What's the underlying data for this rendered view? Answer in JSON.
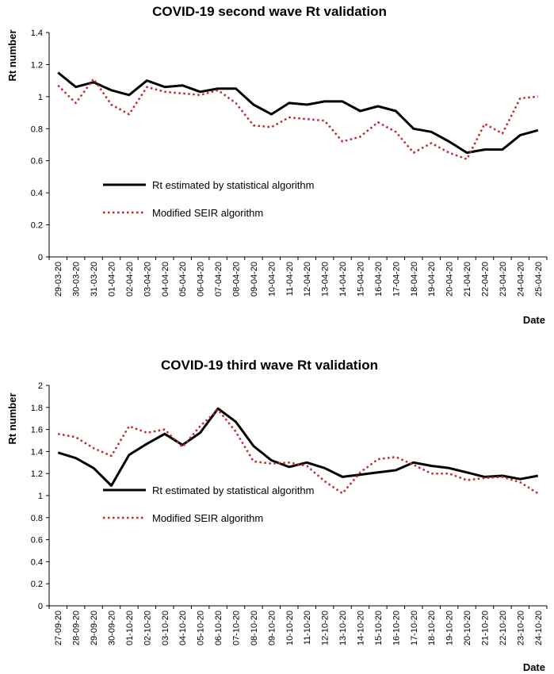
{
  "chart_data": [
    {
      "type": "line",
      "title": "COVID-19 second wave Rt validation",
      "xlabel": "Date",
      "ylabel": "Rt number",
      "ylim": [
        0,
        1.4
      ],
      "yticks": [
        "0",
        "0.2",
        "0.4",
        "0.6",
        "0.8",
        "1",
        "1.2",
        "1.4"
      ],
      "grid": false,
      "legend_position": "left",
      "categories": [
        "29-03-20",
        "30-03-20",
        "31-03-20",
        "01-04-20",
        "02-04-20",
        "03-04-20",
        "04-04-20",
        "05-04-20",
        "06-04-20",
        "07-04-20",
        "08-04-20",
        "09-04-20",
        "10-04-20",
        "11-04-20",
        "12-04-20",
        "13-04-20",
        "14-04-20",
        "15-04-20",
        "16-04-20",
        "17-04-20",
        "18-04-20",
        "19-04-20",
        "20-04-20",
        "21-04-20",
        "22-04-20",
        "23-04-20",
        "24-04-20",
        "25-04-20"
      ],
      "series": [
        {
          "name": "Rt estimated by statistical algorithm",
          "color": "#000000",
          "style": "solid",
          "values": [
            1.15,
            1.06,
            1.09,
            1.04,
            1.01,
            1.1,
            1.06,
            1.07,
            1.03,
            1.05,
            1.05,
            0.95,
            0.89,
            0.96,
            0.95,
            0.97,
            0.97,
            0.91,
            0.94,
            0.91,
            0.8,
            0.78,
            0.72,
            0.65,
            0.67,
            0.67,
            0.76,
            0.79
          ]
        },
        {
          "name": "Modified SEIR algorithm",
          "color": "#c0272d",
          "style": "dotted",
          "values": [
            1.07,
            0.96,
            1.11,
            0.95,
            0.89,
            1.06,
            1.03,
            1.02,
            1.01,
            1.04,
            0.96,
            0.82,
            0.81,
            0.87,
            0.86,
            0.85,
            0.72,
            0.75,
            0.84,
            0.78,
            0.65,
            0.71,
            0.65,
            0.61,
            0.83,
            0.77,
            0.99,
            1.0
          ]
        }
      ]
    },
    {
      "type": "line",
      "title": "COVID-19 third wave Rt validation",
      "xlabel": "Date",
      "ylabel": "Rt number",
      "ylim": [
        0,
        2
      ],
      "yticks": [
        "0",
        "0.2",
        "0.4",
        "0.6",
        "0.8",
        "1",
        "1.2",
        "1.4",
        "1.6",
        "1.8",
        "2"
      ],
      "grid": false,
      "legend_position": "left",
      "categories": [
        "27-09-20",
        "28-09-20",
        "29-09-20",
        "30-09-20",
        "01-10-20",
        "02-10-20",
        "03-10-20",
        "04-10-20",
        "05-10-20",
        "06-10-20",
        "07-10-20",
        "08-10-20",
        "09-10-20",
        "10-10-20",
        "11-10-20",
        "12-10-20",
        "13-10-20",
        "14-10-20",
        "15-10-20",
        "16-10-20",
        "17-10-20",
        "18-10-20",
        "19-10-20",
        "20-10-20",
        "21-10-20",
        "22-10-20",
        "23-10-20",
        "24-10-20"
      ],
      "series": [
        {
          "name": "Rt estimated by statistical algorithm",
          "color": "#000000",
          "style": "solid",
          "values": [
            1.39,
            1.34,
            1.25,
            1.09,
            1.37,
            1.47,
            1.56,
            1.46,
            1.57,
            1.79,
            1.67,
            1.45,
            1.32,
            1.26,
            1.3,
            1.25,
            1.17,
            1.19,
            1.21,
            1.23,
            1.3,
            1.27,
            1.25,
            1.21,
            1.17,
            1.18,
            1.15,
            1.18
          ]
        },
        {
          "name": "Modified SEIR algorithm",
          "color": "#c0272d",
          "style": "dotted",
          "values": [
            1.56,
            1.53,
            1.43,
            1.36,
            1.63,
            1.57,
            1.6,
            1.44,
            1.63,
            1.78,
            1.58,
            1.31,
            1.29,
            1.3,
            1.27,
            1.13,
            1.02,
            1.21,
            1.33,
            1.35,
            1.28,
            1.2,
            1.2,
            1.14,
            1.16,
            1.17,
            1.12,
            1.02
          ]
        }
      ]
    }
  ]
}
